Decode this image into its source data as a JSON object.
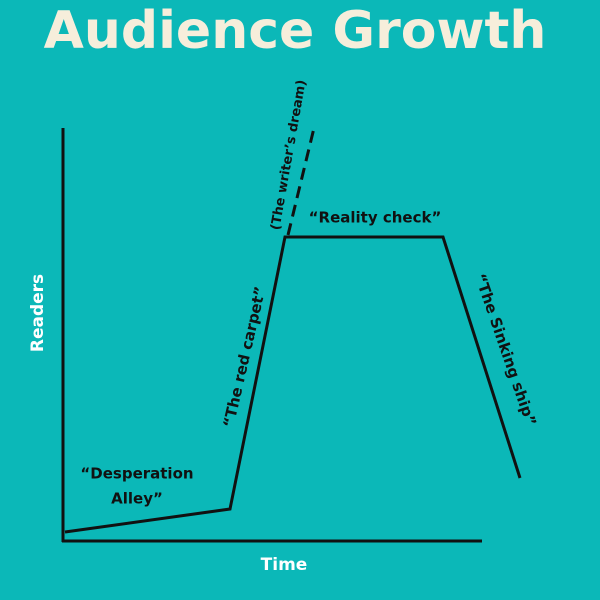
{
  "title": "Audience Growth",
  "axes": {
    "y_label": "Readers",
    "x_label": "Time"
  },
  "annotations": {
    "desperation_alley": [
      "“Desperation",
      "Alley”"
    ],
    "red_carpet": "“The red carpet”",
    "writers_dream": "(The writer’s dream)",
    "reality_check": "“Reality check”",
    "sinking_ship": "“The Sinking ship”"
  }
}
